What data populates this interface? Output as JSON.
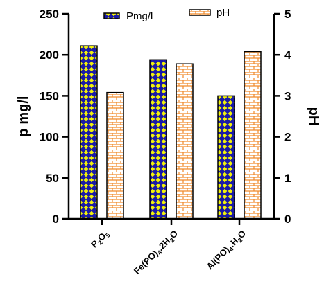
{
  "chart_data": {
    "type": "bar",
    "categories": [
      {
        "base": "P",
        "parts": [
          {
            "t": "P",
            "sub": false
          },
          {
            "t": "2",
            "sub": true
          },
          {
            "t": "O",
            "sub": false
          },
          {
            "t": "5",
            "sub": true
          }
        ],
        "label": "P2O5"
      },
      {
        "base": "Fe",
        "parts": [
          {
            "t": "Fe(PO)",
            "sub": false
          },
          {
            "t": "4",
            "sub": true
          },
          {
            "t": ".2H",
            "sub": false
          },
          {
            "t": "2",
            "sub": true
          },
          {
            "t": "O",
            "sub": false
          }
        ],
        "label": "Fe(PO)4.2H2O"
      },
      {
        "base": "Al",
        "parts": [
          {
            "t": "Al(PO)",
            "sub": false
          },
          {
            "t": "4",
            "sub": true
          },
          {
            "t": ".H",
            "sub": false
          },
          {
            "t": "2",
            "sub": true
          },
          {
            "t": "O",
            "sub": false
          }
        ],
        "label": "Al(PO)4.H2O"
      }
    ],
    "series": [
      {
        "name": "Pmg/l",
        "axis": "left",
        "values": [
          211,
          194,
          150
        ],
        "color": "#1a1aa6",
        "pattern_color": "#f2f20a"
      },
      {
        "name": "pH",
        "axis": "right",
        "values": [
          3.08,
          3.78,
          4.08
        ],
        "color": "#f08a2a",
        "pattern_color": "#ffffff"
      }
    ],
    "ylabel": "p mg/l",
    "y2label": "pH",
    "ylim": [
      0,
      250
    ],
    "y2lim": [
      0,
      5
    ],
    "yticks": [
      "0",
      "50",
      "100",
      "150",
      "200",
      "250"
    ],
    "y2ticks": [
      "0",
      "1",
      "2",
      "3",
      "4",
      "5"
    ],
    "legend_position": "top"
  }
}
